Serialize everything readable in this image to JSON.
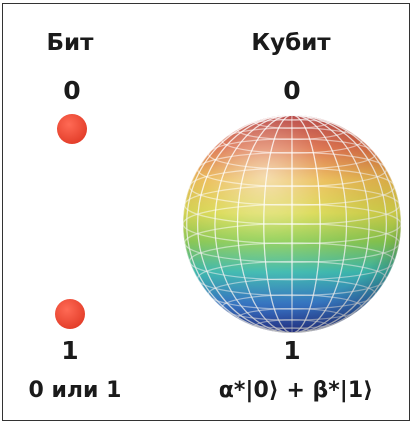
{
  "bit": {
    "title": "Бит",
    "top_state": "0",
    "bottom_state": "1",
    "description": "0 или 1",
    "dot_color": "#ee4a35"
  },
  "qubit": {
    "title": "Кубит",
    "top_state": "0",
    "bottom_state": "1",
    "formula": "α*|0⟩ + β*|1⟩"
  }
}
